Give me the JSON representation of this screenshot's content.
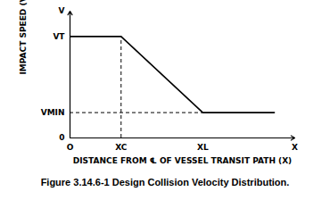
{
  "chart_data": {
    "type": "line",
    "title": "Figure 3.14.6-1 Design Collision Velocity Distribution.",
    "x_label": "DISTANCE FROM ℄ OF VESSEL TRANSIT PATH (X)",
    "y_label": "IMPACT SPEED (V)",
    "x": [
      0,
      1,
      2.6,
      4
    ],
    "values": [
      1,
      1,
      0.25,
      0.25
    ],
    "color": "#000000",
    "xlim": [
      0,
      4.4
    ],
    "ylim": [
      0,
      1.25
    ],
    "xticks": [
      {
        "value": 0,
        "label": "O"
      },
      {
        "value": 1,
        "label": "XC"
      },
      {
        "value": 2.6,
        "label": "XL"
      },
      {
        "value": 4.4,
        "label": "X"
      }
    ],
    "yticks": [
      0,
      {
        "value": 0.25,
        "label": "VMIN"
      },
      {
        "value": 1,
        "label": "VT"
      },
      {
        "value": 1.25,
        "label": "V"
      }
    ]
  }
}
